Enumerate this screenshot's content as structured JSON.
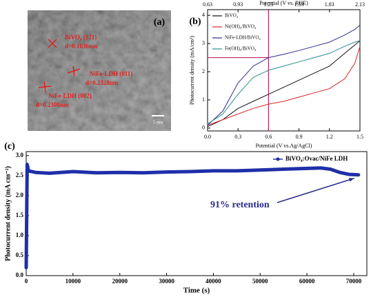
{
  "image_panel": {
    "panel_label": "(a)",
    "scale_bar": "5 nm",
    "labels": [
      {
        "plane": "BiVO₄ (121)",
        "spacing": "d=0.1636nm"
      },
      {
        "plane": "NiFe-LDH (011)",
        "spacing": "d=0.2328nm"
      },
      {
        "plane": "NiFe-LDH (002)",
        "spacing": "d=0.2308nm"
      }
    ]
  },
  "chart_data": [
    {
      "type": "line",
      "panel_label": "(b)",
      "xlabel": "Potential (V vs.Ag/AgCl)",
      "ylabel": "Photocurrent density (mA/cm²)",
      "x2label": "Potential (V vs. RHE)",
      "x": [
        0,
        0.15,
        0.3,
        0.45,
        0.6,
        0.75,
        0.9,
        1.05,
        1.2,
        1.35,
        1.45,
        1.5
      ],
      "series": [
        {
          "name": "BiVO₄",
          "color": "#111111",
          "values": [
            0.05,
            0.3,
            0.7,
            0.95,
            1.2,
            1.45,
            1.7,
            1.95,
            2.2,
            2.65,
            2.95,
            3.1
          ]
        },
        {
          "name": "Ni(OH)₂/BiVO₄",
          "color": "#d62728",
          "values": [
            0.1,
            0.3,
            0.5,
            0.7,
            0.85,
            0.95,
            1.1,
            1.25,
            1.4,
            1.75,
            2.3,
            2.9
          ]
        },
        {
          "name": "NiFe-LDH/BiVO₄",
          "color": "#2a2a8c",
          "values": [
            0.1,
            0.6,
            1.6,
            2.2,
            2.5,
            2.62,
            2.75,
            2.9,
            3.05,
            3.3,
            3.5,
            3.65
          ]
        },
        {
          "name": "Fe(OH)₃/BiVO₄",
          "color": "#2a8c8c",
          "values": [
            0.15,
            0.5,
            1.2,
            1.8,
            2.05,
            2.2,
            2.35,
            2.5,
            2.65,
            2.9,
            3.05,
            3.1
          ]
        }
      ],
      "vline": 0.6,
      "hline": 2.5,
      "ref_color": "#c0206a",
      "xlim": [
        0,
        1.5
      ],
      "xticks": [
        {
          "value": 0,
          "label": "0.0"
        },
        0.3,
        0.6,
        0.9,
        1.2,
        1.5
      ],
      "x2lim": [
        0.63,
        2.13
      ],
      "x2ticks": [
        0.63,
        0.93,
        1.23,
        1.53,
        1.83,
        2.13
      ],
      "ylim": [
        -0.1,
        4.2
      ],
      "yticks": [
        0,
        1,
        2,
        3,
        4
      ]
    },
    {
      "type": "line",
      "panel_label": "(c)",
      "xlabel": "Time (s)",
      "ylabel": "Photocurrent density (mA cm⁻²)",
      "annotation": "91% retention",
      "x": [
        0,
        200,
        500,
        2000,
        5000,
        10000,
        15000,
        20000,
        25000,
        30000,
        35000,
        40000,
        45000,
        50000,
        55000,
        60000,
        63000,
        65000,
        67000,
        69000,
        71000
      ],
      "series": [
        {
          "name": "BiVO₄:Ovac/NiFe LDH",
          "color": "#1f2fa8",
          "values": [
            0.2,
            2.78,
            2.62,
            2.58,
            2.56,
            2.6,
            2.57,
            2.58,
            2.57,
            2.59,
            2.6,
            2.62,
            2.62,
            2.64,
            2.66,
            2.68,
            2.69,
            2.66,
            2.58,
            2.53,
            2.52
          ]
        }
      ],
      "xlim": [
        0,
        72800
      ],
      "xticks": [
        0,
        10000,
        20000,
        30000,
        40000,
        50000,
        60000,
        70000
      ],
      "ylim": [
        0,
        3.1
      ],
      "yticks": [
        {
          "value": 0,
          "label": "0.0"
        },
        0.5,
        {
          "value": 1,
          "label": "1.0"
        },
        1.5,
        {
          "value": 2,
          "label": "2.0"
        },
        2.5,
        {
          "value": 3,
          "label": "3.0"
        }
      ]
    }
  ]
}
